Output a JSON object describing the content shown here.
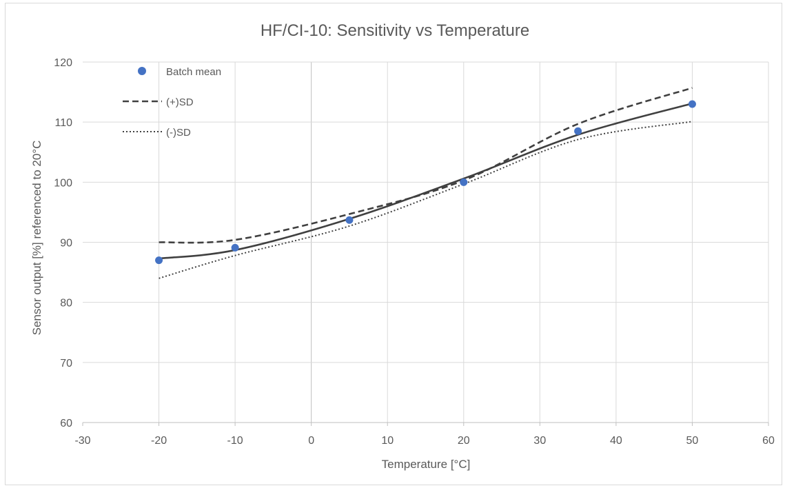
{
  "chart_data": {
    "type": "scatter",
    "title": "HF/CI-10: Sensitivity vs Temperature",
    "xlabel": "Temperature [°C]",
    "ylabel": "Sensor output [%] referenced to 20°C",
    "xlim": [
      -30,
      60
    ],
    "ylim": [
      60,
      120
    ],
    "x_ticks": [
      -30,
      -20,
      -10,
      0,
      10,
      20,
      30,
      40,
      50,
      60
    ],
    "y_ticks": [
      60,
      70,
      80,
      90,
      100,
      110,
      120
    ],
    "grid": true,
    "legend_position": "top-left",
    "series": [
      {
        "name": "Batch mean",
        "style": "markers",
        "color": "#4472c4",
        "x": [
          -20,
          -10,
          5,
          20,
          35,
          50
        ],
        "y": [
          87.0,
          89.1,
          93.7,
          100.0,
          108.5,
          113.0
        ]
      },
      {
        "name": "",
        "style": "solid-smooth",
        "color": "#404040",
        "x": [
          -20,
          -10,
          5,
          20,
          35,
          50
        ],
        "y": [
          87.3,
          88.7,
          93.9,
          100.6,
          107.9,
          113.1
        ]
      },
      {
        "name": "(+)SD",
        "style": "dashed",
        "color": "#404040",
        "x": [
          -20,
          -10,
          5,
          20,
          35,
          50
        ],
        "y": [
          90.0,
          90.4,
          94.7,
          100.3,
          109.7,
          115.7
        ]
      },
      {
        "name": "(-)SD",
        "style": "dotted",
        "color": "#404040",
        "x": [
          -20,
          -10,
          5,
          20,
          35,
          50
        ],
        "y": [
          84.0,
          87.8,
          92.7,
          99.7,
          107.1,
          110.1
        ]
      }
    ]
  }
}
